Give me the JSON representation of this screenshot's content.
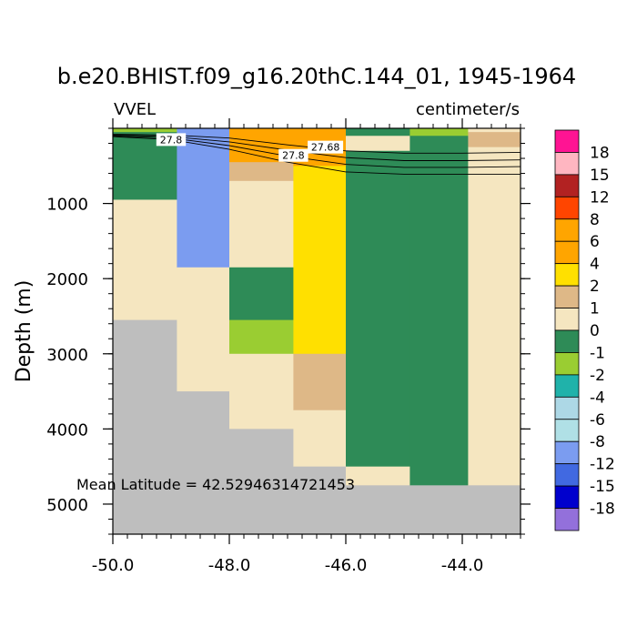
{
  "chart_data": {
    "type": "heatmap",
    "title": "b.e20.BHIST.f09_g16.20thC.144_01, 1945-1964",
    "variable_label": "VVEL",
    "units_label": "centimeter/s",
    "ylabel": "Depth (m)",
    "xlabel": "",
    "xlim": [
      -50.0,
      -43.0
    ],
    "ylim": [
      5400,
      0
    ],
    "xticks": [
      -50.0,
      -48.0,
      -46.0,
      -44.0
    ],
    "xtick_labels": [
      "-50.0",
      "-48.0",
      "-46.0",
      "-44.0"
    ],
    "yticks": [
      1000,
      2000,
      3000,
      4000,
      5000
    ],
    "ytick_labels": [
      "1000",
      "2000",
      "3000",
      "4000",
      "5000"
    ],
    "annotation": "Mean Latitude = 42.52946314721453",
    "colorbar": {
      "labels": [
        "18",
        "15",
        "12",
        "8",
        "6",
        "4",
        "2",
        "1",
        "0",
        "-1",
        "-2",
        "-4",
        "-6",
        "-8",
        "-12",
        "-15",
        "-18"
      ],
      "colors": [
        "#ff1493",
        "#ffb6c1",
        "#b22222",
        "#ff4500",
        "#ffa500",
        "#ffa500",
        "#ffe000",
        "#deb887",
        "#f5e6c0",
        "#2e8b57",
        "#9acd32",
        "#20b2aa",
        "#add8e6",
        "#b0e0e6",
        "#7b9cf0",
        "#4169e1",
        "#0000cd",
        "#9370db"
      ]
    },
    "color_map": {
      "6": "#ffa500",
      "2": "#ffe000",
      "1": "#deb887",
      "0": "#f5e6c0",
      "-1": "#2e8b57",
      "-2": "#9acd32",
      "-8": "#7b9cf0",
      "land": "#bebebe"
    },
    "columns": [
      {
        "x0": -50.0,
        "x1": -48.9,
        "cells": [
          {
            "d0": 0,
            "d1": 50,
            "v": "-2"
          },
          {
            "d0": 50,
            "d1": 950,
            "v": "-1"
          },
          {
            "d0": 950,
            "d1": 2550,
            "v": "0"
          },
          {
            "d0": 2550,
            "d1": 5400,
            "v": "land"
          }
        ]
      },
      {
        "x0": -48.9,
        "x1": -48.0,
        "cells": [
          {
            "d0": 0,
            "d1": 1850,
            "v": "-8"
          },
          {
            "d0": 1850,
            "d1": 3500,
            "v": "0"
          },
          {
            "d0": 3500,
            "d1": 5400,
            "v": "land"
          }
        ]
      },
      {
        "x0": -48.0,
        "x1": -46.9,
        "cells": [
          {
            "d0": 0,
            "d1": 450,
            "v": "6"
          },
          {
            "d0": 450,
            "d1": 700,
            "v": "1"
          },
          {
            "d0": 700,
            "d1": 1850,
            "v": "0"
          },
          {
            "d0": 1850,
            "d1": 2550,
            "v": "-1"
          },
          {
            "d0": 2550,
            "d1": 3000,
            "v": "-2"
          },
          {
            "d0": 3000,
            "d1": 4000,
            "v": "0"
          },
          {
            "d0": 4000,
            "d1": 5400,
            "v": "land"
          }
        ]
      },
      {
        "x0": -46.9,
        "x1": -46.0,
        "cells": [
          {
            "d0": 0,
            "d1": 500,
            "v": "6"
          },
          {
            "d0": 500,
            "d1": 3000,
            "v": "2"
          },
          {
            "d0": 3000,
            "d1": 3750,
            "v": "1"
          },
          {
            "d0": 3750,
            "d1": 4500,
            "v": "0"
          },
          {
            "d0": 4500,
            "d1": 5400,
            "v": "land"
          }
        ]
      },
      {
        "x0": -46.0,
        "x1": -44.9,
        "cells": [
          {
            "d0": 0,
            "d1": 100,
            "v": "-1"
          },
          {
            "d0": 100,
            "d1": 300,
            "v": "0"
          },
          {
            "d0": 300,
            "d1": 4500,
            "v": "-1"
          },
          {
            "d0": 4500,
            "d1": 4750,
            "v": "0"
          },
          {
            "d0": 4750,
            "d1": 5400,
            "v": "land"
          }
        ]
      },
      {
        "x0": -44.9,
        "x1": -43.9,
        "cells": [
          {
            "d0": 0,
            "d1": 100,
            "v": "-2"
          },
          {
            "d0": 100,
            "d1": 4750,
            "v": "-1"
          },
          {
            "d0": 4750,
            "d1": 5400,
            "v": "land"
          }
        ]
      },
      {
        "x0": -43.9,
        "x1": -43.0,
        "cells": [
          {
            "d0": 0,
            "d1": 50,
            "v": "0"
          },
          {
            "d0": 50,
            "d1": 250,
            "v": "1"
          },
          {
            "d0": 250,
            "d1": 4750,
            "v": "0"
          },
          {
            "d0": 4750,
            "d1": 5400,
            "v": "land"
          }
        ]
      }
    ],
    "contours": [
      {
        "points": [
          [
            -50.0,
            80
          ],
          [
            -49.0,
            90
          ],
          [
            -48.0,
            130
          ],
          [
            -47.0,
            220
          ],
          [
            -46.0,
            300
          ],
          [
            -45.0,
            330
          ],
          [
            -44.0,
            330
          ],
          [
            -43.0,
            320
          ]
        ]
      },
      {
        "points": [
          [
            -50.0,
            90
          ],
          [
            -49.0,
            110
          ],
          [
            -48.0,
            180
          ],
          [
            -47.0,
            290
          ],
          [
            -46.0,
            390
          ],
          [
            -45.0,
            430
          ],
          [
            -44.0,
            430
          ],
          [
            -43.0,
            420
          ]
        ]
      },
      {
        "points": [
          [
            -50.0,
            100
          ],
          [
            -49.0,
            130
          ],
          [
            -48.0,
            230
          ],
          [
            -47.0,
            370
          ],
          [
            -46.0,
            480
          ],
          [
            -45.0,
            520
          ],
          [
            -44.0,
            520
          ],
          [
            -43.0,
            510
          ]
        ]
      },
      {
        "points": [
          [
            -50.0,
            110
          ],
          [
            -49.0,
            150
          ],
          [
            -48.0,
            280
          ],
          [
            -47.0,
            450
          ],
          [
            -46.0,
            580
          ],
          [
            -45.0,
            610
          ],
          [
            -44.0,
            610
          ],
          [
            -43.0,
            610
          ]
        ]
      }
    ],
    "contour_labels": [
      {
        "text": "27.8",
        "x": -49.0,
        "d": 150
      },
      {
        "text": "27.8",
        "x": -46.9,
        "d": 360
      },
      {
        "text": "27.68",
        "x": -46.35,
        "d": 250
      }
    ]
  }
}
